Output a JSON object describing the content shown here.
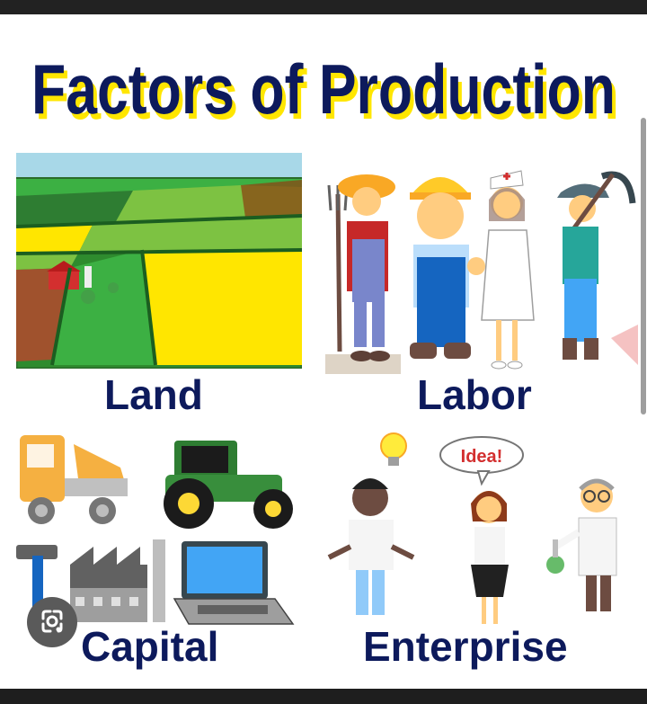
{
  "title": "Factors of Production",
  "factors": [
    {
      "id": "land",
      "label": "Land"
    },
    {
      "id": "labor",
      "label": "Labor"
    },
    {
      "id": "capital",
      "label": "Capital"
    },
    {
      "id": "enterprise",
      "label": "Enterprise"
    }
  ],
  "speech_bubble": "Idea!",
  "colors": {
    "title_text": "#0d1a5c",
    "title_shadow": "#ffe600",
    "label_text": "#0d1a5c"
  },
  "icons": {
    "lens_button": "image-search-icon"
  }
}
